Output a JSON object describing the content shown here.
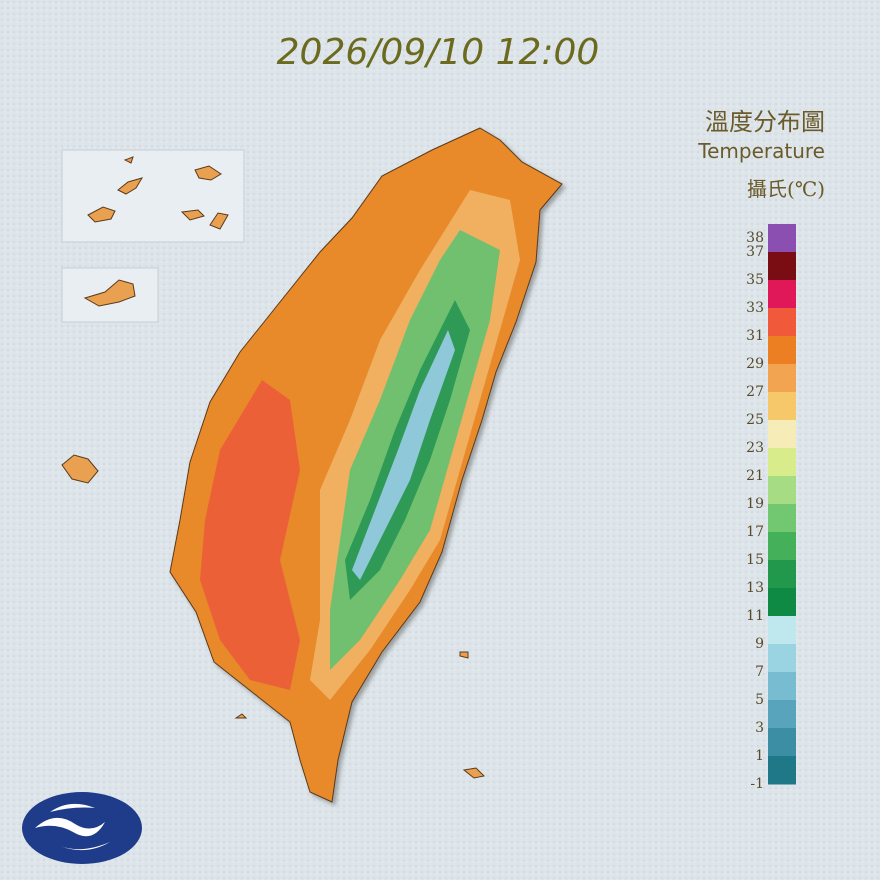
{
  "header": {
    "timestamp": "2026/09/10 12:00"
  },
  "legend": {
    "title": "溫度分布圖",
    "subtitle": "Temperature",
    "unit": "攝氏(℃)",
    "ylim": [
      -1,
      39
    ],
    "ticks": [
      38,
      37,
      35,
      33,
      31,
      29,
      27,
      25,
      23,
      21,
      19,
      17,
      15,
      13,
      11,
      9,
      7,
      5,
      3,
      1,
      -1
    ],
    "colors": [
      "#8a4fb0",
      "#7a0c14",
      "#e0185a",
      "#f05a3a",
      "#ec7f22",
      "#f2a450",
      "#f6c86a",
      "#f5ecb8",
      "#d8ec8c",
      "#a6dc84",
      "#72c870",
      "#45b05a",
      "#22984c",
      "#0e8a44",
      "#bfe8ee",
      "#9ad4e2",
      "#78bcd2",
      "#58a4bc",
      "#3c8ea4",
      "#1f7888"
    ]
  }
}
